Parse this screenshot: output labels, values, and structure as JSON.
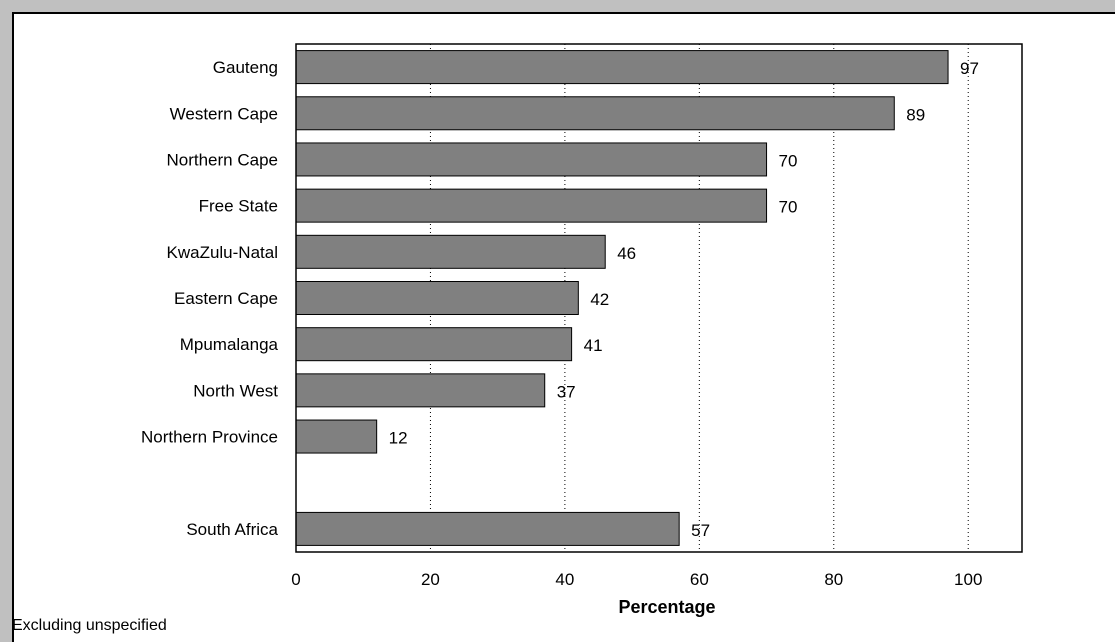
{
  "chart_data": {
    "type": "bar",
    "orientation": "horizontal",
    "categories": [
      "Gauteng",
      "Western Cape",
      "Northern Cape",
      "Free State",
      "KwaZulu-Natal",
      "Eastern Cape",
      "Mpumalanga",
      "North West",
      "Northern Province",
      "",
      "South Africa"
    ],
    "values": [
      97,
      89,
      70,
      70,
      46,
      42,
      41,
      37,
      12,
      null,
      57
    ],
    "value_labels": [
      "97",
      "89",
      "70",
      "70",
      "46",
      "42",
      "41",
      "37",
      "12",
      "",
      "57"
    ],
    "title": "",
    "xlabel": "Percentage",
    "ylabel": "",
    "xlim": [
      0,
      108
    ],
    "xticks": [
      0,
      20,
      40,
      60,
      80,
      100
    ],
    "xtick_labels": [
      "0",
      "20",
      "40",
      "60",
      "80",
      "100"
    ],
    "grid": "vertical dotted",
    "bar_color": "#808080",
    "note": "Excluding unspecified"
  }
}
